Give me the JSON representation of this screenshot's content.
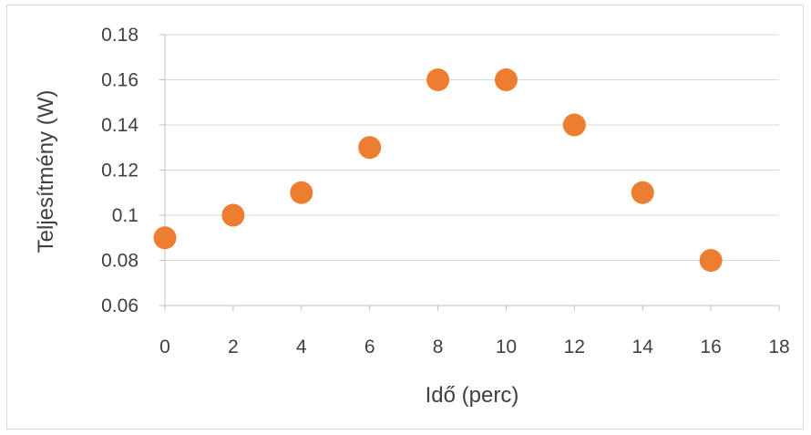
{
  "chart_data": {
    "type": "scatter",
    "xlabel": "Idő (perc)",
    "ylabel": "Teljesítmény (W)",
    "xlim": [
      0,
      18
    ],
    "ylim": [
      0.06,
      0.18
    ],
    "x_ticks": [
      "0",
      "2",
      "4",
      "6",
      "8",
      "10",
      "12",
      "14",
      "16",
      "18"
    ],
    "y_ticks": [
      "0.06",
      "0.08",
      "0.1",
      "0.12",
      "0.14",
      "0.16",
      "0.18"
    ],
    "grid": true,
    "legend": "none",
    "marker_color": "#ed7d31",
    "series": [
      {
        "x": [
          0,
          2,
          4,
          6,
          8,
          10,
          12,
          14,
          16
        ],
        "y": [
          0.09,
          0.1,
          0.11,
          0.13,
          0.16,
          0.16,
          0.14,
          0.11,
          0.08
        ]
      }
    ]
  }
}
